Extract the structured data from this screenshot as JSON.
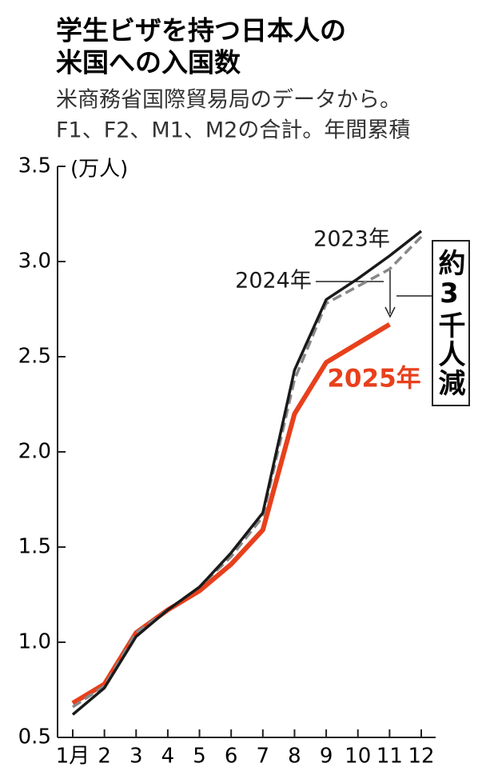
{
  "chart_data": {
    "type": "line",
    "title": [
      "学生ビザを持つ日本人の",
      "米国への入国数"
    ],
    "subtitle": [
      "米商務省国際貿易局のデータから。",
      "F1、F2、M1、M2の合計。年間累積"
    ],
    "y_unit": "(万人)",
    "categories": [
      "1月",
      "2",
      "3",
      "4",
      "5",
      "6",
      "7",
      "8",
      "9",
      "10",
      "11",
      "12"
    ],
    "series": [
      {
        "name": "2023年",
        "color": "#1a1a1a",
        "dash": false,
        "values": [
          0.62,
          0.76,
          1.03,
          1.17,
          1.29,
          1.47,
          1.68,
          2.43,
          2.8,
          2.91,
          3.03,
          3.16
        ]
      },
      {
        "name": "2024年",
        "color": "#888888",
        "dash": true,
        "values": [
          0.66,
          0.77,
          1.05,
          1.17,
          1.29,
          1.45,
          1.66,
          2.38,
          2.78,
          2.87,
          2.96,
          3.13
        ]
      },
      {
        "name": "2025年",
        "color": "#e8401c",
        "dash": false,
        "values": [
          0.68,
          0.78,
          1.05,
          1.17,
          1.27,
          1.41,
          1.59,
          2.2,
          2.47,
          2.57,
          2.67,
          null
        ]
      }
    ],
    "annotation": "約3千人減",
    "ylim": [
      0.5,
      3.5
    ],
    "yticks": [
      0.5,
      {
        "value": 1,
        "label": "1.0"
      },
      1.5,
      {
        "value": 2,
        "label": "2.0"
      },
      2.5,
      {
        "value": 3,
        "label": "3.0"
      },
      3.5
    ]
  }
}
